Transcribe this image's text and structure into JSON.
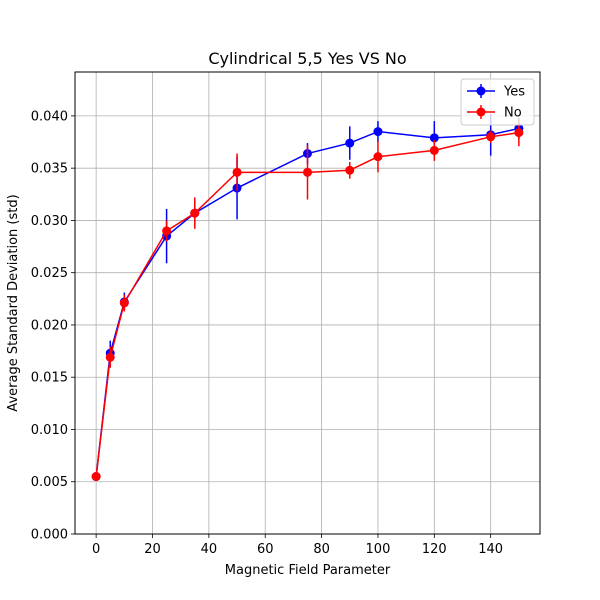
{
  "chart_data": {
    "type": "line",
    "title": "Cylindrical 5,5 Yes VS No",
    "xlabel": "Magnetic Field Parameter",
    "ylabel": "Average Standard Deviation (std)",
    "xlim": [
      -7.5,
      157.5
    ],
    "ylim": [
      0.0,
      0.0442
    ],
    "xticks": [
      0,
      20,
      40,
      60,
      80,
      100,
      120,
      140
    ],
    "xtick_labels": [
      "0",
      "20",
      "40",
      "60",
      "80",
      "100",
      "120",
      "140"
    ],
    "yticks": [
      0.0,
      0.005,
      0.01,
      0.015,
      0.02,
      0.025,
      0.03,
      0.035,
      0.04
    ],
    "ytick_labels": [
      "0.000",
      "0.005",
      "0.010",
      "0.015",
      "0.020",
      "0.025",
      "0.030",
      "0.035",
      "0.040"
    ],
    "grid": true,
    "legend_position": "top-right",
    "series": [
      {
        "name": "Yes",
        "color": "#0000ff",
        "x": [
          0,
          5,
          10,
          25,
          35,
          50,
          75,
          90,
          100,
          120,
          140,
          150
        ],
        "y": [
          0.0055,
          0.0173,
          0.0222,
          0.0285,
          0.0307,
          0.0331,
          0.0364,
          0.0374,
          0.0385,
          0.0379,
          0.0382,
          0.0388
        ],
        "yerr": [
          0.0003,
          0.0012,
          0.0009,
          0.0026,
          0.0012,
          0.003,
          0.001,
          0.0016,
          0.001,
          0.0016,
          0.002,
          0.001
        ]
      },
      {
        "name": "No",
        "color": "#ff0000",
        "x": [
          0,
          5,
          10,
          25,
          35,
          50,
          75,
          90,
          100,
          120,
          140,
          150
        ],
        "y": [
          0.0055,
          0.0169,
          0.0221,
          0.029,
          0.0307,
          0.0346,
          0.0346,
          0.0348,
          0.0361,
          0.0367,
          0.038,
          0.0384
        ],
        "yerr": [
          0.0003,
          0.001,
          0.0008,
          0.001,
          0.0015,
          0.0018,
          0.0026,
          0.0008,
          0.0015,
          0.001,
          0.0006,
          0.0013
        ]
      }
    ]
  }
}
